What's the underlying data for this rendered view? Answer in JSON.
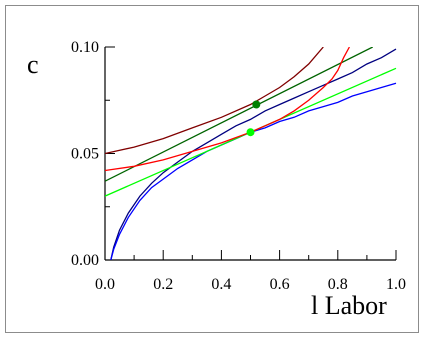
{
  "chart_data": {
    "type": "line",
    "ylabel": "c",
    "xlabel": "l Labor",
    "xlim": [
      0.0,
      1.0
    ],
    "ylim": [
      0.0,
      0.1
    ],
    "x_ticks": [
      "0.0",
      "0.2",
      "0.4",
      "0.6",
      "0.8",
      "1.0"
    ],
    "y_ticks": [
      "0.00",
      "0.05",
      "0.10"
    ],
    "grid": false,
    "legend": "none",
    "series": [
      {
        "color": "#000080",
        "x": [
          0.02,
          0.03,
          0.05,
          0.08,
          0.12,
          0.16,
          0.2,
          0.25,
          0.3,
          0.35,
          0.4,
          0.45,
          0.5,
          0.55,
          0.6,
          0.65,
          0.7,
          0.75,
          0.8,
          0.85,
          0.9,
          0.95,
          1.0
        ],
        "y": [
          0.0,
          0.006,
          0.014,
          0.022,
          0.03,
          0.036,
          0.041,
          0.046,
          0.051,
          0.055,
          0.059,
          0.063,
          0.066,
          0.07,
          0.073,
          0.076,
          0.079,
          0.082,
          0.085,
          0.088,
          0.092,
          0.095,
          0.099
        ]
      },
      {
        "color": "#0000ff",
        "x": [
          0.02,
          0.03,
          0.05,
          0.08,
          0.12,
          0.16,
          0.2,
          0.25,
          0.3,
          0.35,
          0.4,
          0.45,
          0.5,
          0.55,
          0.6,
          0.65,
          0.7,
          0.75,
          0.8,
          0.85,
          0.9,
          0.95,
          1.0
        ],
        "y": [
          0.0,
          0.005,
          0.012,
          0.02,
          0.028,
          0.034,
          0.038,
          0.043,
          0.047,
          0.051,
          0.054,
          0.057,
          0.06,
          0.062,
          0.065,
          0.067,
          0.07,
          0.072,
          0.074,
          0.077,
          0.079,
          0.081,
          0.083
        ]
      },
      {
        "color": "#006400",
        "x": [
          0.0,
          0.92
        ],
        "y": [
          0.037,
          0.1
        ]
      },
      {
        "color": "#00ff00",
        "x": [
          0.0,
          1.0
        ],
        "y": [
          0.03,
          0.09
        ]
      },
      {
        "color": "#800000",
        "x": [
          0.0,
          0.1,
          0.2,
          0.3,
          0.4,
          0.5,
          0.55,
          0.6,
          0.65,
          0.7,
          0.75
        ],
        "y": [
          0.05,
          0.053,
          0.057,
          0.062,
          0.067,
          0.073,
          0.077,
          0.081,
          0.086,
          0.092,
          0.1
        ]
      },
      {
        "color": "#ff0000",
        "x": [
          0.0,
          0.1,
          0.2,
          0.3,
          0.4,
          0.5,
          0.55,
          0.6,
          0.65,
          0.7,
          0.75,
          0.78,
          0.8,
          0.82,
          0.84
        ],
        "y": [
          0.042,
          0.044,
          0.047,
          0.051,
          0.055,
          0.06,
          0.063,
          0.066,
          0.07,
          0.075,
          0.081,
          0.085,
          0.089,
          0.095,
          0.1
        ]
      }
    ],
    "points": [
      {
        "x": 0.52,
        "y": 0.073,
        "color": "#008000"
      },
      {
        "x": 0.5,
        "y": 0.06,
        "color": "#00ff00"
      }
    ]
  }
}
